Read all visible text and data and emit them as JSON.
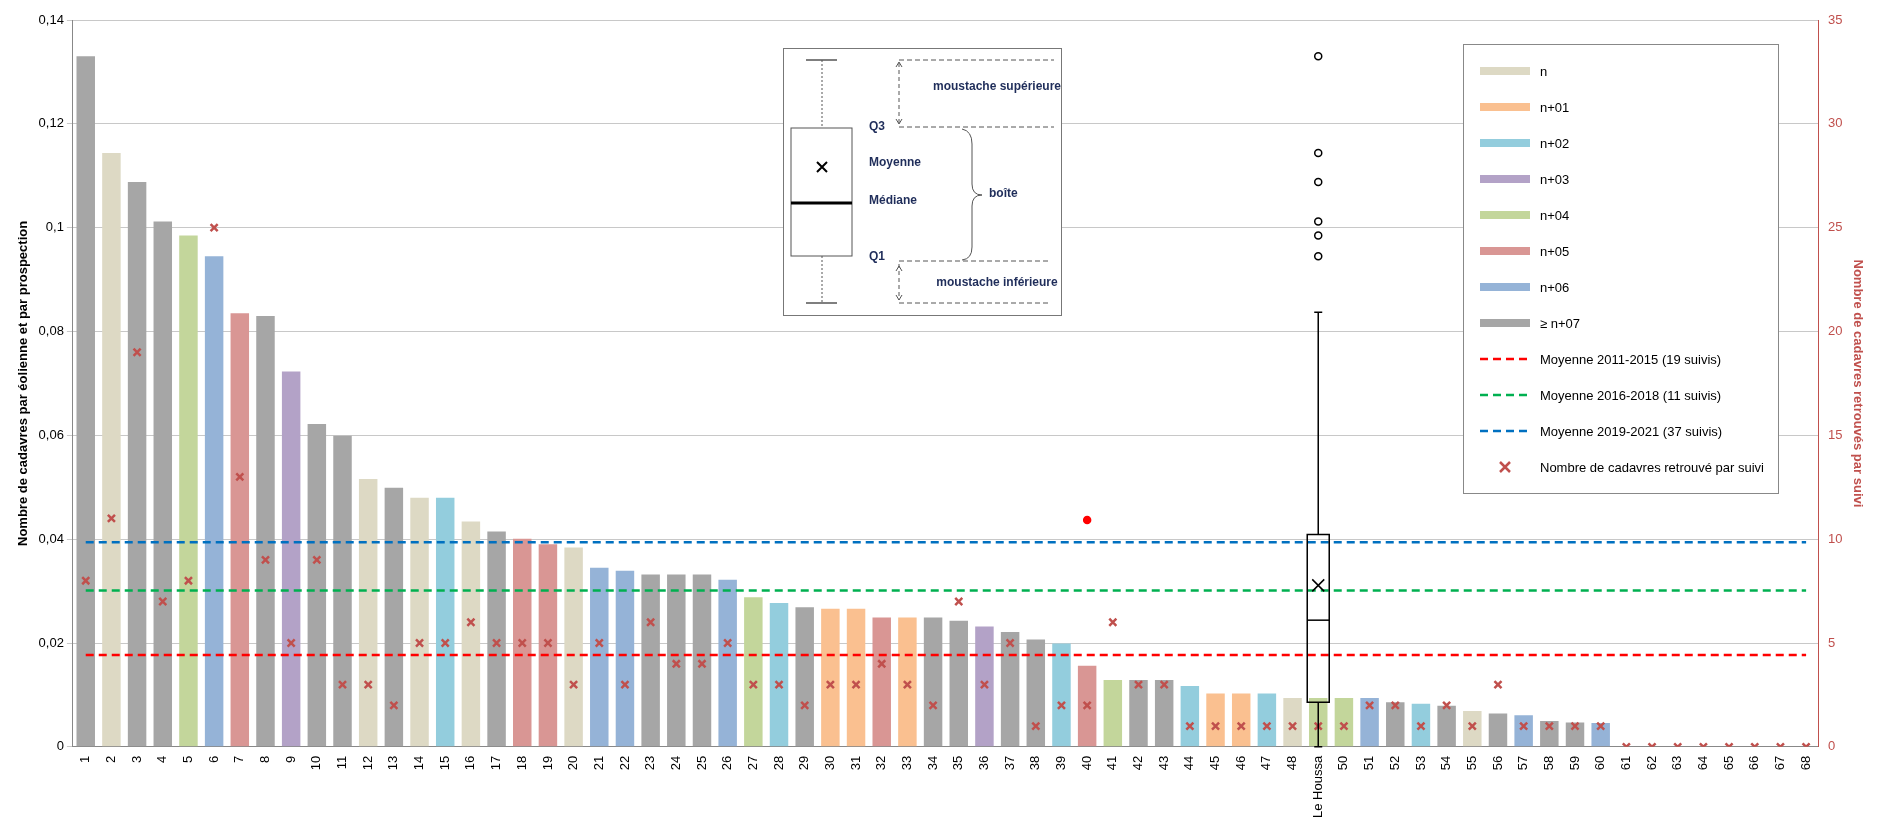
{
  "chart_data": {
    "type": "bar",
    "ylabel": "Nombre de cadavres par éolienne et par prospection",
    "y2label": "Nombre de cadavres retrouvés par suivi",
    "categories": [
      "1",
      "2",
      "3",
      "4",
      "5",
      "6",
      "7",
      "8",
      "9",
      "10",
      "11",
      "12",
      "13",
      "14",
      "15",
      "16",
      "17",
      "18",
      "19",
      "20",
      "21",
      "22",
      "23",
      "24",
      "25",
      "26",
      "27",
      "28",
      "29",
      "30",
      "31",
      "32",
      "33",
      "34",
      "35",
      "36",
      "37",
      "38",
      "39",
      "40",
      "41",
      "42",
      "43",
      "44",
      "45",
      "46",
      "47",
      "48",
      "Le Houssa",
      "50",
      "51",
      "52",
      "53",
      "54",
      "55",
      "56",
      "57",
      "58",
      "59",
      "60",
      "61",
      "62",
      "63",
      "64",
      "65",
      "66",
      "67",
      "68"
    ],
    "ylim": [
      0,
      0.14
    ],
    "yticks": [
      0,
      {
        "value": 0.02,
        "label": "0,02"
      },
      {
        "value": 0.04,
        "label": "0,04"
      },
      {
        "value": 0.06,
        "label": "0,06"
      },
      {
        "value": 0.08,
        "label": "0,08"
      },
      {
        "value": 0.1,
        "label": "0,1"
      },
      {
        "value": 0.12,
        "label": "0,12"
      },
      {
        "value": 0.14,
        "label": "0,14"
      }
    ],
    "y2lim": [
      0,
      35
    ],
    "y2ticks": [
      0,
      5,
      10,
      15,
      20,
      25,
      30,
      35
    ],
    "grid": "y",
    "legend": "top right",
    "series": [
      {
        "name": "n",
        "color": "#ddd9c4",
        "values": [
          null,
          0.1144,
          null,
          null,
          null,
          null,
          null,
          null,
          null,
          null,
          null,
          0.0516,
          null,
          0.048,
          null,
          0.0434,
          null,
          null,
          null,
          0.0384,
          null,
          null,
          null,
          null,
          null,
          null,
          null,
          null,
          null,
          null,
          null,
          null,
          null,
          null,
          null,
          null,
          null,
          null,
          null,
          null,
          null,
          null,
          null,
          null,
          null,
          null,
          null,
          0.0094,
          null,
          null,
          null,
          null,
          null,
          null,
          0.0069,
          null,
          null,
          null,
          null,
          null,
          null,
          null,
          null,
          null,
          null,
          null,
          null,
          null
        ]
      },
      {
        "name": "n+01",
        "color": "#fac090",
        "values": [
          null,
          null,
          null,
          null,
          null,
          null,
          null,
          null,
          null,
          null,
          null,
          null,
          null,
          null,
          null,
          null,
          null,
          null,
          null,
          null,
          null,
          null,
          null,
          null,
          null,
          null,
          null,
          null,
          null,
          0.0266,
          0.0266,
          null,
          0.0249,
          null,
          null,
          null,
          null,
          null,
          null,
          null,
          null,
          null,
          null,
          null,
          0.0103,
          0.0103,
          null,
          null,
          null,
          null,
          null,
          null,
          null,
          null,
          null,
          null,
          null,
          null,
          null,
          null,
          null,
          null,
          null,
          null,
          null,
          null,
          null,
          null
        ]
      },
      {
        "name": "n+02",
        "color": "#93cddd",
        "values": [
          null,
          null,
          null,
          null,
          null,
          null,
          null,
          null,
          null,
          null,
          null,
          null,
          null,
          null,
          0.048,
          null,
          null,
          null,
          null,
          null,
          null,
          null,
          null,
          null,
          null,
          null,
          null,
          0.0277,
          null,
          null,
          null,
          null,
          null,
          null,
          null,
          null,
          null,
          null,
          0.0199,
          null,
          null,
          null,
          null,
          0.0117,
          null,
          null,
          0.0103,
          null,
          null,
          null,
          null,
          null,
          0.0083,
          null,
          null,
          null,
          null,
          null,
          null,
          null,
          null,
          null,
          null,
          null,
          null,
          null,
          null,
          null
        ]
      },
      {
        "name": "n+03",
        "color": "#b3a2c7",
        "values": [
          null,
          null,
          null,
          null,
          null,
          null,
          null,
          null,
          0.0723,
          null,
          null,
          null,
          null,
          null,
          null,
          null,
          null,
          null,
          null,
          null,
          null,
          null,
          null,
          null,
          null,
          null,
          null,
          null,
          null,
          null,
          null,
          null,
          null,
          null,
          null,
          0.0232,
          null,
          null,
          null,
          null,
          null,
          null,
          null,
          null,
          null,
          null,
          null,
          null,
          null,
          null,
          null,
          null,
          null,
          null,
          null,
          null,
          null,
          null,
          null,
          null,
          null,
          null,
          null,
          null,
          null,
          null,
          null,
          null
        ]
      },
      {
        "name": "n+04",
        "color": "#c3d69b",
        "values": [
          null,
          null,
          null,
          null,
          0.0985,
          null,
          null,
          null,
          null,
          null,
          null,
          null,
          null,
          null,
          null,
          null,
          null,
          null,
          null,
          null,
          null,
          null,
          null,
          null,
          null,
          null,
          0.0288,
          null,
          null,
          null,
          null,
          null,
          null,
          null,
          null,
          null,
          null,
          null,
          null,
          null,
          0.0129,
          null,
          null,
          null,
          null,
          null,
          null,
          null,
          0.0094,
          0.0094,
          null,
          null,
          null,
          null,
          null,
          null,
          null,
          null,
          null,
          null,
          null,
          null,
          null,
          null,
          null,
          null,
          null,
          null
        ]
      },
      {
        "name": "n+05",
        "color": "#d99694",
        "values": [
          null,
          null,
          null,
          null,
          null,
          null,
          0.0835,
          null,
          null,
          null,
          null,
          null,
          null,
          null,
          null,
          null,
          null,
          0.0401,
          0.039,
          null,
          null,
          null,
          null,
          null,
          null,
          null,
          null,
          null,
          null,
          null,
          null,
          0.0249,
          null,
          null,
          null,
          null,
          null,
          null,
          null,
          0.0156,
          null,
          null,
          null,
          null,
          null,
          null,
          null,
          null,
          null,
          null,
          null,
          null,
          null,
          null,
          null,
          null,
          null,
          null,
          null,
          null,
          null,
          null,
          null,
          null,
          null,
          null,
          null,
          null
        ]
      },
      {
        "name": "n+06",
        "color": "#95b3d7",
        "values": [
          null,
          null,
          null,
          null,
          null,
          0.0945,
          null,
          null,
          null,
          null,
          null,
          null,
          null,
          null,
          null,
          null,
          null,
          null,
          null,
          null,
          0.0345,
          0.0339,
          null,
          null,
          null,
          0.0322,
          null,
          null,
          null,
          null,
          null,
          null,
          null,
          null,
          null,
          null,
          null,
          null,
          null,
          null,
          null,
          null,
          null,
          null,
          null,
          null,
          null,
          null,
          null,
          null,
          0.0094,
          null,
          null,
          null,
          null,
          null,
          0.0061,
          null,
          null,
          0.0046,
          null,
          null,
          null,
          null,
          null,
          null,
          null,
          null
        ]
      },
      {
        "name": "≥ n+07",
        "color": "#a6a6a6",
        "values": [
          0.133,
          null,
          0.1088,
          0.1012,
          null,
          null,
          null,
          0.083,
          null,
          0.0622,
          0.0599,
          null,
          0.0499,
          null,
          null,
          null,
          0.0415,
          null,
          null,
          null,
          null,
          null,
          0.0332,
          0.0332,
          0.0332,
          null,
          null,
          null,
          0.0269,
          null,
          null,
          null,
          null,
          0.0249,
          0.0243,
          null,
          0.0221,
          0.0207,
          null,
          null,
          null,
          0.0129,
          0.0129,
          null,
          null,
          null,
          null,
          null,
          null,
          null,
          null,
          0.0086,
          null,
          0.0079,
          null,
          0.0064,
          null,
          0.005,
          0.0047,
          null,
          0,
          0,
          0,
          0,
          0,
          0,
          0,
          0
        ]
      },
      {
        "type": "box",
        "color": "#000000",
        "boxes": [
          null,
          null,
          null,
          null,
          null,
          null,
          null,
          null,
          null,
          null,
          null,
          null,
          null,
          null,
          null,
          null,
          null,
          null,
          null,
          null,
          null,
          null,
          null,
          null,
          null,
          null,
          null,
          null,
          null,
          null,
          null,
          null,
          null,
          null,
          null,
          null,
          null,
          null,
          null,
          null,
          null,
          null,
          null,
          null,
          null,
          null,
          null,
          null,
          {
            "low": 0,
            "q1": 0.0086,
            "median": 0.0244,
            "q3": 0.0409,
            "high": 0.0837,
            "mean": 0.0311,
            "outliers": [
              0.133,
              0.1144,
              0.1088,
              0.1012,
              0.0985,
              0.0945
            ]
          },
          null,
          null,
          null,
          null,
          null,
          null,
          null,
          null,
          null,
          null,
          null,
          null,
          null,
          null,
          null,
          null,
          null,
          null,
          null
        ]
      },
      {
        "type": "scatter",
        "name": "Nombre de cadavres retrouvé par suivi",
        "color": "#c0504d",
        "marker": "cross",
        "axis": "y2",
        "values": [
          8,
          11,
          19,
          7,
          8,
          25,
          13,
          9,
          5,
          9,
          3,
          3,
          2,
          5,
          5,
          6,
          5,
          5,
          5,
          3,
          5,
          3,
          6,
          4,
          4,
          5,
          3,
          3,
          2,
          3,
          3,
          4,
          3,
          2,
          7,
          3,
          5,
          1,
          2,
          2,
          6,
          3,
          3,
          1,
          1,
          1,
          1,
          1,
          1,
          1,
          2,
          2,
          1,
          2,
          1,
          3,
          1,
          1,
          1,
          1,
          0,
          0,
          0,
          0,
          0,
          0,
          0,
          0
        ]
      },
      {
        "type": "scatter",
        "color": "#ff0000",
        "marker": "circle",
        "values": [
          null,
          null,
          null,
          null,
          null,
          null,
          null,
          null,
          null,
          null,
          null,
          null,
          null,
          null,
          null,
          null,
          null,
          null,
          null,
          null,
          null,
          null,
          null,
          null,
          null,
          null,
          null,
          null,
          null,
          null,
          null,
          null,
          null,
          null,
          null,
          null,
          null,
          null,
          null,
          0.0437,
          null,
          null,
          null,
          null,
          null,
          null,
          null,
          null,
          null,
          null,
          null,
          null,
          null,
          null,
          null,
          null,
          null,
          null,
          null,
          null,
          null,
          null,
          null,
          null,
          null,
          null,
          null,
          null
        ]
      }
    ],
    "ref_lines": [
      {
        "axis": "y",
        "value": 0.0177,
        "label": "Moyenne 2011-2015 (19 suivis)",
        "color": "#ff0000",
        "line_style": "dashed"
      },
      {
        "axis": "y",
        "value": 0.0301,
        "label": "Moyenne 2016-2018 (11 suivis)",
        "color": "#00b050",
        "line_style": "dashed"
      },
      {
        "axis": "y",
        "value": 0.0394,
        "label": "Moyenne 2019-2021 (37 suivis)",
        "color": "#0070c0",
        "line_style": "dashed"
      }
    ],
    "annotations": [
      "moustache supérieure",
      "Q3",
      "Moyenne",
      "Médiane",
      "boîte",
      "Q1",
      "moustache inférieure"
    ]
  }
}
